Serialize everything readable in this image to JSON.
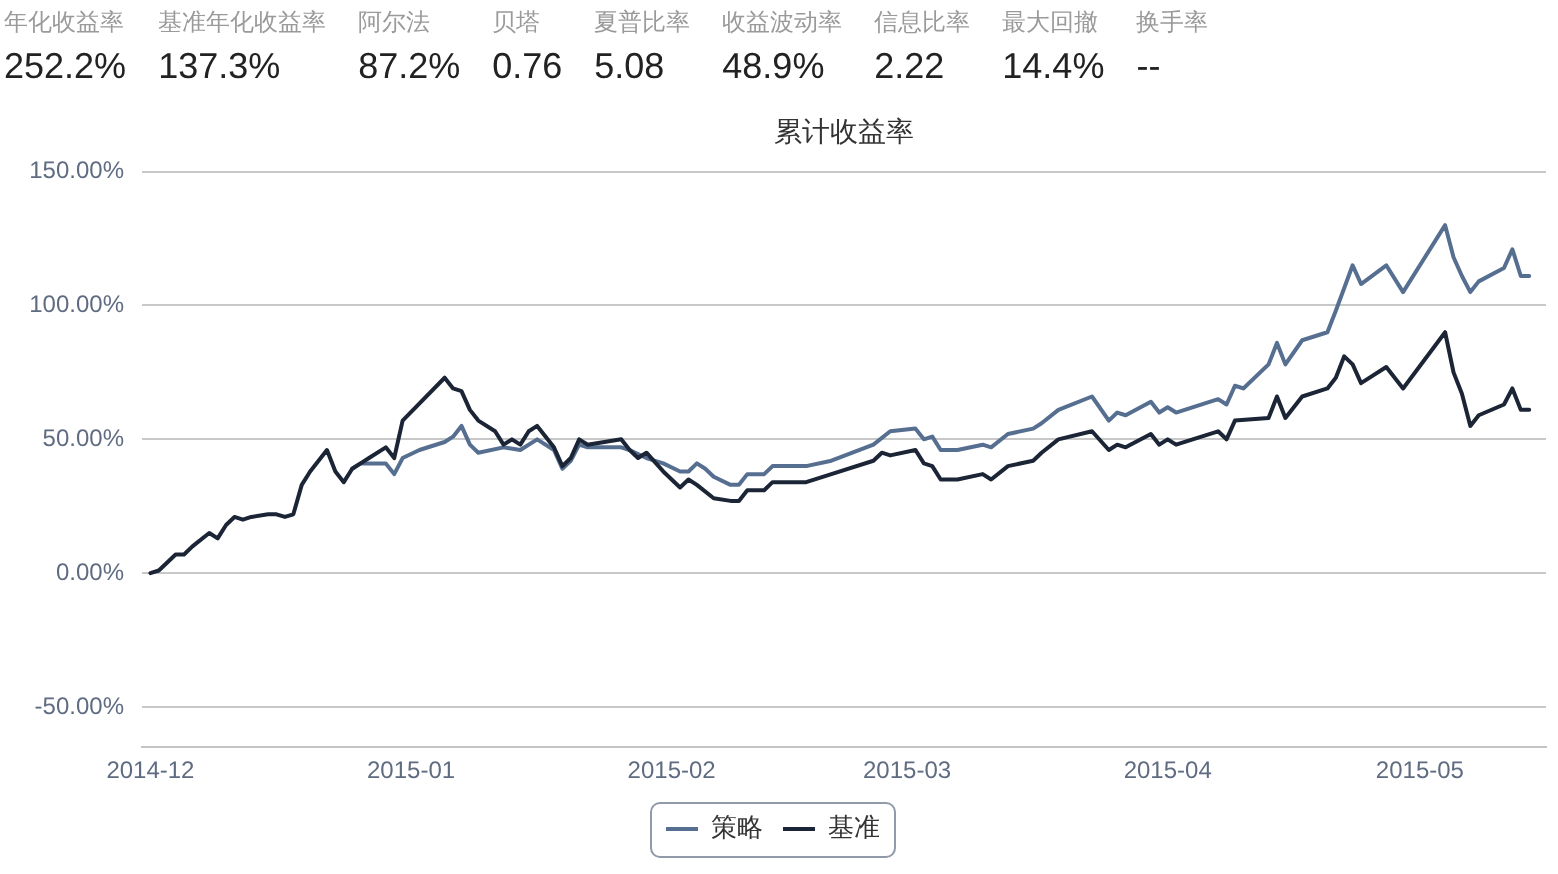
{
  "chart_data": [
    {
      "type": "other",
      "categories": [
        "年化收益率",
        "基准年化收益率",
        "阿尔法",
        "贝塔",
        "夏普比率",
        "收益波动率",
        "信息比率",
        "最大回撤",
        "换手率"
      ],
      "value_labels": [
        "252.2%",
        "137.3%",
        "87.2%",
        "0.76",
        "5.08",
        "48.9%",
        "2.22",
        "14.4%",
        "--"
      ]
    },
    {
      "type": "line",
      "title": "累计收益率",
      "xlim": [
        "2014-11-30",
        "2015-05-16"
      ],
      "xticks": [
        "2014-12",
        "2015-01",
        "2015-02",
        "2015-03",
        "2015-04",
        "2015-05"
      ],
      "ylim": [
        -65,
        150
      ],
      "yticks": [
        {
          "value": -50,
          "label": "-50.00%"
        },
        {
          "value": 0,
          "label": "0.00%"
        },
        {
          "value": 50,
          "label": "50.00%"
        },
        {
          "value": 100,
          "label": "100.00%"
        },
        {
          "value": 150,
          "label": "150.00%"
        }
      ],
      "grid": "y",
      "legend": "bottom",
      "series": [
        {
          "name": "策略",
          "color": "#566f91",
          "x": [
            "2014-12-25",
            "2014-12-26",
            "2014-12-27",
            "2014-12-29",
            "2014-12-30",
            "2014-12-31",
            "2015-01-02",
            "2015-01-05",
            "2015-01-06",
            "2015-01-07",
            "2015-01-08",
            "2015-01-09",
            "2015-01-12",
            "2015-01-14",
            "2015-01-16",
            "2015-01-18",
            "2015-01-19",
            "2015-01-20",
            "2015-01-21",
            "2015-01-22",
            "2015-01-26",
            "2015-01-27",
            "2015-01-29",
            "2015-01-31",
            "2015-02-02",
            "2015-02-03",
            "2015-02-04",
            "2015-02-05",
            "2015-02-06",
            "2015-02-08",
            "2015-02-09",
            "2015-02-10",
            "2015-02-12",
            "2015-02-13",
            "2015-02-17",
            "2015-02-20",
            "2015-02-25",
            "2015-02-27",
            "2015-03-02",
            "2015-03-03",
            "2015-03-04",
            "2015-03-05",
            "2015-03-07",
            "2015-03-10",
            "2015-03-11",
            "2015-03-13",
            "2015-03-16",
            "2015-03-17",
            "2015-03-19",
            "2015-03-23",
            "2015-03-25",
            "2015-03-26",
            "2015-03-27",
            "2015-03-30",
            "2015-03-31",
            "2015-04-01",
            "2015-04-02",
            "2015-04-07",
            "2015-04-08",
            "2015-04-09",
            "2015-04-10",
            "2015-04-13",
            "2015-04-14",
            "2015-04-15",
            "2015-04-17",
            "2015-04-20",
            "2015-04-21",
            "2015-04-23",
            "2015-04-24",
            "2015-04-27",
            "2015-04-29",
            "2015-05-04",
            "2015-05-05",
            "2015-05-06",
            "2015-05-07",
            "2015-05-08",
            "2015-05-11",
            "2015-05-12",
            "2015-05-13",
            "2015-05-14"
          ],
          "values": [
            39,
            41,
            41,
            41,
            37,
            43,
            46,
            49,
            51,
            55,
            48,
            45,
            47,
            46,
            50,
            46,
            39,
            42,
            48,
            47,
            47,
            46,
            43,
            41,
            38,
            38,
            41,
            39,
            36,
            33,
            33,
            37,
            37,
            40,
            40,
            42,
            48,
            53,
            54,
            50,
            51,
            46,
            46,
            48,
            47,
            52,
            54,
            56,
            61,
            66,
            57,
            60,
            59,
            64,
            60,
            62,
            60,
            65,
            63,
            70,
            69,
            78,
            86,
            78,
            87,
            90,
            98,
            115,
            108,
            115,
            105,
            130,
            118,
            111,
            105,
            109,
            114,
            121,
            111,
            111
          ]
        },
        {
          "name": "基准",
          "color": "#1b2536",
          "x": [
            "2014-12-01",
            "2014-12-02",
            "2014-12-03",
            "2014-12-04",
            "2014-12-05",
            "2014-12-06",
            "2014-12-08",
            "2014-12-09",
            "2014-12-10",
            "2014-12-11",
            "2014-12-12",
            "2014-12-13",
            "2014-12-15",
            "2014-12-16",
            "2014-12-17",
            "2014-12-18",
            "2014-12-19",
            "2014-12-20",
            "2014-12-22",
            "2014-12-23",
            "2014-12-24",
            "2014-12-25",
            "2014-12-26",
            "2014-12-27",
            "2014-12-29",
            "2014-12-30",
            "2014-12-31",
            "2015-01-05",
            "2015-01-06",
            "2015-01-07",
            "2015-01-08",
            "2015-01-09",
            "2015-01-11",
            "2015-01-12",
            "2015-01-13",
            "2015-01-14",
            "2015-01-15",
            "2015-01-16",
            "2015-01-18",
            "2015-01-19",
            "2015-01-20",
            "2015-01-21",
            "2015-01-22",
            "2015-01-26",
            "2015-01-27",
            "2015-01-28",
            "2015-01-29",
            "2015-01-31",
            "2015-02-02",
            "2015-02-03",
            "2015-02-04",
            "2015-02-06",
            "2015-02-08",
            "2015-02-09",
            "2015-02-10",
            "2015-02-12",
            "2015-02-13",
            "2015-02-17",
            "2015-02-20",
            "2015-02-25",
            "2015-02-26",
            "2015-02-27",
            "2015-03-02",
            "2015-03-03",
            "2015-03-04",
            "2015-03-05",
            "2015-03-07",
            "2015-03-10",
            "2015-03-11",
            "2015-03-13",
            "2015-03-16",
            "2015-03-17",
            "2015-03-19",
            "2015-03-23",
            "2015-03-25",
            "2015-03-26",
            "2015-03-27",
            "2015-03-30",
            "2015-03-31",
            "2015-04-01",
            "2015-04-02",
            "2015-04-07",
            "2015-04-08",
            "2015-04-09",
            "2015-04-13",
            "2015-04-14",
            "2015-04-15",
            "2015-04-17",
            "2015-04-20",
            "2015-04-21",
            "2015-04-22",
            "2015-04-23",
            "2015-04-24",
            "2015-04-27",
            "2015-04-29",
            "2015-05-04",
            "2015-05-05",
            "2015-05-06",
            "2015-05-07",
            "2015-05-08",
            "2015-05-11",
            "2015-05-12",
            "2015-05-13",
            "2015-05-14"
          ],
          "values": [
            0,
            1,
            4,
            7,
            7,
            10,
            15,
            13,
            18,
            21,
            20,
            21,
            22,
            22,
            21,
            22,
            33,
            38,
            46,
            38,
            34,
            39,
            41,
            43,
            47,
            43,
            57,
            73,
            69,
            68,
            61,
            57,
            53,
            48,
            50,
            48,
            53,
            55,
            47,
            40,
            43,
            50,
            48,
            50,
            46,
            43,
            45,
            38,
            32,
            35,
            33,
            28,
            27,
            27,
            31,
            31,
            34,
            34,
            37,
            42,
            45,
            44,
            46,
            41,
            40,
            35,
            35,
            37,
            35,
            40,
            42,
            45,
            50,
            53,
            46,
            48,
            47,
            52,
            48,
            50,
            48,
            53,
            50,
            57,
            58,
            66,
            58,
            66,
            69,
            73,
            81,
            78,
            71,
            77,
            69,
            90,
            75,
            67,
            55,
            59,
            63,
            69,
            61,
            61
          ]
        }
      ]
    }
  ]
}
